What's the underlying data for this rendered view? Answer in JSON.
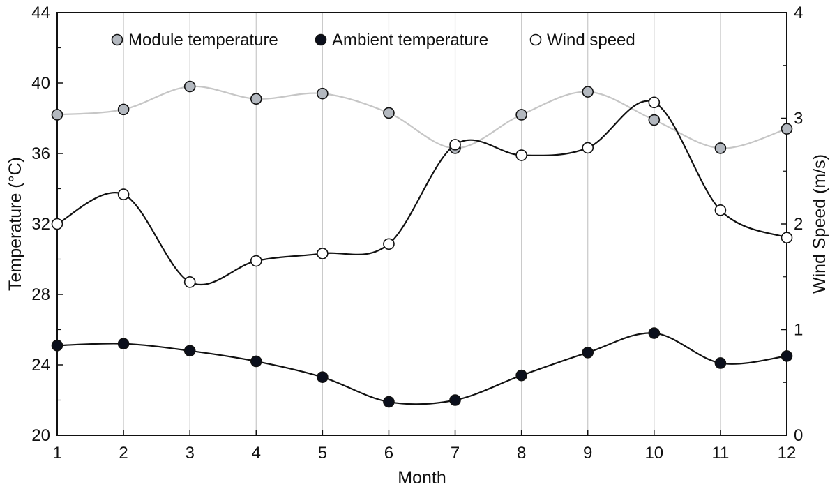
{
  "chart_data": {
    "type": "line",
    "x": [
      1,
      2,
      3,
      4,
      5,
      6,
      7,
      8,
      9,
      10,
      11,
      12
    ],
    "xlabel": "Month",
    "ylabel": "Temperature (°C)",
    "y2label": "Wind Speed (m/s)",
    "ylim": [
      20,
      44
    ],
    "y2lim": [
      0,
      4
    ],
    "yticks": [
      20,
      24,
      28,
      32,
      36,
      40,
      44
    ],
    "y2ticks": [
      0,
      1,
      2,
      3,
      4
    ],
    "grid": "vertical",
    "legend_position": "top",
    "series": [
      {
        "name": "Module temperature",
        "axis": "left",
        "values": [
          38.2,
          38.5,
          39.8,
          39.1,
          39.4,
          38.3,
          36.3,
          38.2,
          39.5,
          37.9,
          36.3,
          37.4
        ],
        "marker_fill": "#b3b8bf",
        "line_color": "#c6c6c6"
      },
      {
        "name": "Ambient temperature",
        "axis": "left",
        "values": [
          25.1,
          25.2,
          24.8,
          24.2,
          23.3,
          21.9,
          22.0,
          23.4,
          24.7,
          25.8,
          24.1,
          24.5
        ],
        "marker_fill": "#0b0f1c",
        "line_color": "#111111"
      },
      {
        "name": "Wind speed",
        "axis": "right",
        "values": [
          2.0,
          2.28,
          1.45,
          1.65,
          1.72,
          1.81,
          2.75,
          2.65,
          2.72,
          3.15,
          2.13,
          1.87
        ],
        "marker_fill": "#ffffff",
        "line_color": "#111111"
      }
    ]
  }
}
